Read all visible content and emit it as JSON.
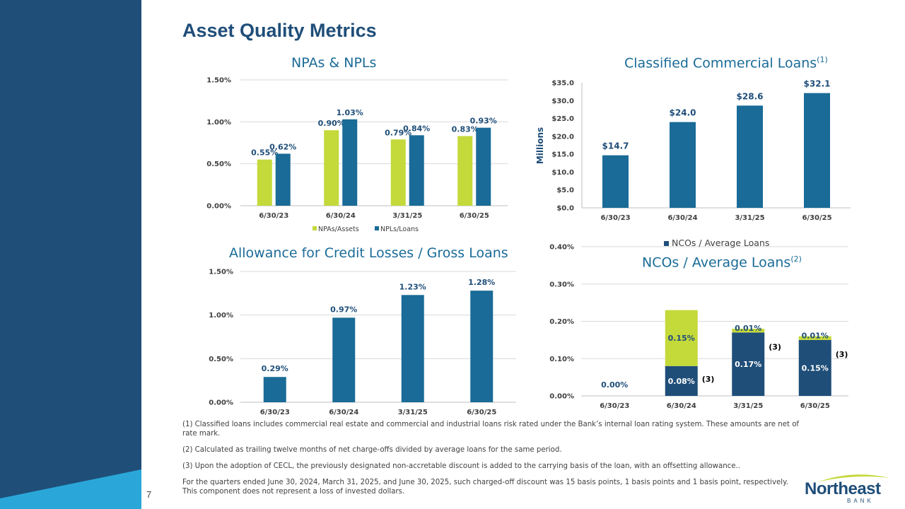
{
  "page": {
    "title": "Asset Quality Metrics",
    "page_number": "7",
    "colors": {
      "navy": "#1f4e79",
      "teal": "#1a6b97",
      "lime": "#c4d93a",
      "light_blue": "#2aa7d8"
    }
  },
  "logo": {
    "name": "Northeast",
    "sub": "BANK"
  },
  "chart_data": [
    {
      "id": "npas",
      "type": "bar",
      "title": "NPAs & NPLs",
      "categories": [
        "6/30/23",
        "6/30/24",
        "3/31/25",
        "6/30/25"
      ],
      "series": [
        {
          "name": "NPAs/Assets",
          "values": [
            0.55,
            0.9,
            0.79,
            0.83
          ],
          "labels": [
            "0.55%",
            "0.90%",
            "0.79%",
            "0.83%"
          ]
        },
        {
          "name": "NPLs/Loans",
          "values": [
            0.62,
            1.03,
            0.84,
            0.93
          ],
          "labels": [
            "0.62%",
            "1.03%",
            "0.84%",
            "0.93%"
          ]
        }
      ],
      "yticks": [
        0,
        0.5,
        1.0,
        1.5
      ],
      "ytick_labels": [
        "0.00%",
        "0.50%",
        "1.00%",
        "1.50%"
      ],
      "ylim": [
        0,
        1.5
      ],
      "legend": "bottom"
    },
    {
      "id": "classified",
      "type": "bar",
      "title": "Classified Commercial Loans",
      "title_sup": "(1)",
      "ylabel": "Millions",
      "categories": [
        "6/30/23",
        "6/30/24",
        "3/31/25",
        "6/30/25"
      ],
      "values": [
        14.7,
        24.0,
        28.6,
        32.1
      ],
      "labels": [
        "$14.7",
        "$24.0",
        "$28.6",
        "$32.1"
      ],
      "yticks": [
        0,
        5,
        10,
        15,
        20,
        25,
        30,
        35
      ],
      "ytick_labels": [
        "$0.0",
        "$5.0",
        "$10.0",
        "$15.0",
        "$20.0",
        "$25.0",
        "$30.0",
        "$35.0"
      ],
      "ylim": [
        0,
        35
      ]
    },
    {
      "id": "acl",
      "type": "bar",
      "title": "Allowance for Credit Losses / Gross Loans",
      "categories": [
        "6/30/23",
        "6/30/24",
        "3/31/25",
        "6/30/25"
      ],
      "values": [
        0.29,
        0.97,
        1.23,
        1.28
      ],
      "labels": [
        "0.29%",
        "0.97%",
        "1.23%",
        "1.28%"
      ],
      "yticks": [
        0,
        0.5,
        1.0,
        1.5
      ],
      "ytick_labels": [
        "0.00%",
        "0.50%",
        "1.00%",
        "1.50%"
      ],
      "ylim": [
        0,
        1.5
      ]
    },
    {
      "id": "ncos",
      "type": "bar",
      "title": "NCOs / Average Loans",
      "title_sup": "(2)",
      "legend_label": "NCOs / Average Loans",
      "categories": [
        "6/30/23",
        "6/30/24",
        "3/31/25",
        "6/30/25"
      ],
      "series": [
        {
          "name": "NCOs / Average Loans",
          "values": [
            0,
            0.08,
            0.17,
            0.15
          ],
          "labels": [
            "0.00%",
            "0.08%",
            "0.17%",
            "0.15%"
          ]
        },
        {
          "name": "(3)",
          "values": [
            0,
            0.15,
            0.01,
            0.01
          ],
          "labels": [
            "",
            "0.15%",
            "0.01%",
            "0.01%"
          ]
        }
      ],
      "notes": [
        "",
        "(3)",
        "(3)",
        "(3)"
      ],
      "yticks": [
        0,
        0.1,
        0.2,
        0.3,
        0.4
      ],
      "ytick_labels": [
        "0.00%",
        "0.10%",
        "0.20%",
        "0.30%",
        "0.40%"
      ],
      "ylim": [
        0,
        0.4
      ]
    }
  ],
  "footnotes": {
    "f1": "(1) Classified loans includes commercial real estate and commercial and industrial loans risk rated under the Bank’s internal loan rating system. These amounts are net of rate mark.",
    "f2": "(2) Calculated as trailing twelve months of net charge-offs divided by average loans for the same period.",
    "f3": "(3) Upon the adoption of CECL, the previously designated non-accretable discount is added to the carrying basis of the loan, with an offsetting allowance..",
    "f4": "For the quarters ended June 30, 2024, March 31, 2025, and June 30, 2025, such charged-off discount was 15 basis points, 1 basis points and 1 basis point, respectively. This component does not represent a loss of invested dollars."
  }
}
